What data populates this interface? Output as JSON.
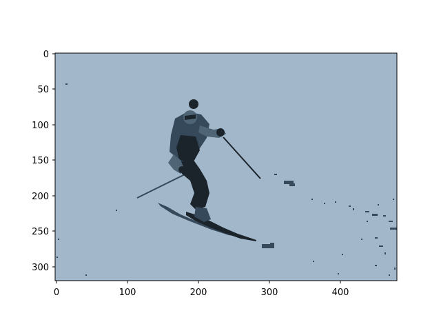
{
  "image": {
    "description_icon": "skier-icon",
    "colors": {
      "background": "#a3b7ca",
      "figure_dark": "#1b232b",
      "figure_mid": "#35495a",
      "figure_light": "#4f6576",
      "frame": "#000000"
    }
  },
  "axes": {
    "x_ticks": [
      "0",
      "100",
      "200",
      "300",
      "400"
    ],
    "y_ticks": [
      "0",
      "50",
      "100",
      "150",
      "200",
      "250",
      "300"
    ],
    "x_range": [
      0,
      480
    ],
    "y_range": [
      320,
      0
    ]
  }
}
